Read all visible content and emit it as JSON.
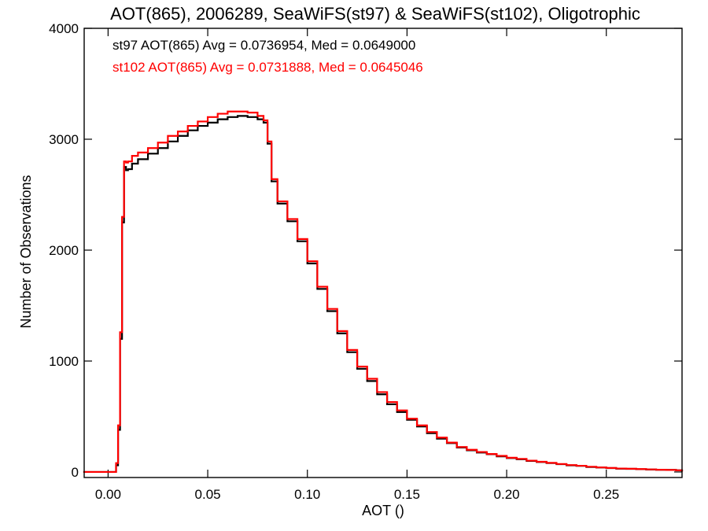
{
  "chart_data": {
    "type": "line",
    "title": "AOT(865), 2006289, SeaWiFS(st97) & SeaWiFS(st102), Oligotrophic",
    "xlabel": "AOT ()",
    "ylabel": "Number of Observations",
    "xlim": [
      -0.012,
      0.288
    ],
    "ylim": [
      -50,
      4000
    ],
    "xticks": [
      {
        "value": 0.0,
        "label": "0.00"
      },
      {
        "value": 0.05,
        "label": "0.05"
      },
      {
        "value": 0.1,
        "label": "0.10"
      },
      {
        "value": 0.15,
        "label": "0.15"
      },
      {
        "value": 0.2,
        "label": "0.20"
      },
      {
        "value": 0.25,
        "label": "0.25"
      }
    ],
    "yticks": [
      {
        "value": 0,
        "label": "0"
      },
      {
        "value": 1000,
        "label": "1000"
      },
      {
        "value": 2000,
        "label": "2000"
      },
      {
        "value": 3000,
        "label": "3000"
      },
      {
        "value": 4000,
        "label": "4000"
      }
    ],
    "grid": false,
    "annotations": [
      {
        "text": "st97 AOT(865) Avg = 0.0736954, Med = 0.0649000",
        "color": "#000000"
      },
      {
        "text": "st102 AOT(865) Avg = 0.0731888, Med = 0.0645046",
        "color": "#ff0000"
      }
    ],
    "series": [
      {
        "color": "#000000",
        "x": [
          -0.012,
          0.002,
          0.004,
          0.005,
          0.006,
          0.007,
          0.008,
          0.009,
          0.01,
          0.012,
          0.015,
          0.02,
          0.025,
          0.03,
          0.035,
          0.04,
          0.045,
          0.05,
          0.055,
          0.06,
          0.065,
          0.07,
          0.075,
          0.078,
          0.08,
          0.082,
          0.085,
          0.09,
          0.095,
          0.1,
          0.105,
          0.11,
          0.115,
          0.12,
          0.125,
          0.13,
          0.135,
          0.14,
          0.145,
          0.15,
          0.155,
          0.16,
          0.165,
          0.17,
          0.175,
          0.18,
          0.185,
          0.19,
          0.195,
          0.2,
          0.205,
          0.21,
          0.215,
          0.22,
          0.225,
          0.23,
          0.235,
          0.24,
          0.245,
          0.25,
          0.255,
          0.26,
          0.265,
          0.27,
          0.275,
          0.28,
          0.285,
          0.288
        ],
        "y": [
          0,
          0,
          60,
          380,
          1200,
          2250,
          2750,
          2720,
          2730,
          2780,
          2820,
          2870,
          2920,
          2980,
          3030,
          3080,
          3120,
          3150,
          3180,
          3200,
          3210,
          3200,
          3180,
          3150,
          2960,
          2620,
          2420,
          2260,
          2080,
          1880,
          1650,
          1450,
          1250,
          1080,
          930,
          820,
          700,
          610,
          540,
          470,
          410,
          350,
          300,
          260,
          220,
          195,
          175,
          160,
          140,
          125,
          115,
          100,
          90,
          80,
          70,
          60,
          55,
          45,
          40,
          35,
          30,
          28,
          25,
          22,
          20,
          18,
          15,
          12
        ]
      },
      {
        "color": "#ff0000",
        "x": [
          -0.012,
          0.002,
          0.004,
          0.005,
          0.006,
          0.007,
          0.008,
          0.009,
          0.01,
          0.012,
          0.015,
          0.02,
          0.025,
          0.03,
          0.035,
          0.04,
          0.045,
          0.05,
          0.055,
          0.06,
          0.065,
          0.07,
          0.075,
          0.078,
          0.08,
          0.082,
          0.085,
          0.09,
          0.095,
          0.1,
          0.105,
          0.11,
          0.115,
          0.12,
          0.125,
          0.13,
          0.135,
          0.14,
          0.145,
          0.15,
          0.155,
          0.16,
          0.165,
          0.17,
          0.175,
          0.18,
          0.185,
          0.19,
          0.195,
          0.2,
          0.205,
          0.21,
          0.215,
          0.22,
          0.225,
          0.23,
          0.235,
          0.24,
          0.245,
          0.25,
          0.255,
          0.26,
          0.265,
          0.27,
          0.275,
          0.28,
          0.285,
          0.288
        ],
        "y": [
          0,
          0,
          80,
          420,
          1260,
          2300,
          2800,
          2790,
          2800,
          2850,
          2880,
          2920,
          2970,
          3030,
          3070,
          3120,
          3160,
          3200,
          3230,
          3250,
          3250,
          3240,
          3210,
          3170,
          2980,
          2640,
          2440,
          2280,
          2100,
          1900,
          1670,
          1470,
          1270,
          1100,
          950,
          840,
          720,
          630,
          555,
          480,
          420,
          360,
          310,
          265,
          225,
          200,
          180,
          162,
          145,
          128,
          118,
          102,
          92,
          82,
          72,
          62,
          56,
          47,
          41,
          36,
          31,
          29,
          26,
          23,
          20,
          18,
          15,
          12
        ]
      }
    ]
  }
}
